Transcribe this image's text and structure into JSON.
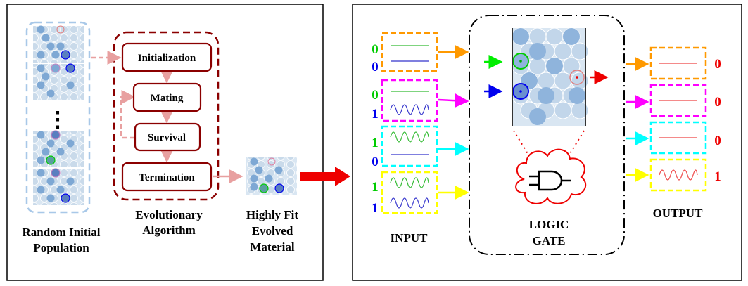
{
  "left_panel": {
    "population_label": [
      "Random Initial",
      "Population"
    ],
    "ellipsis": "⋮",
    "ea_stages": [
      "Initialization",
      "Mating",
      "Survival",
      "Termination"
    ],
    "ea_label": [
      "Evolutionary",
      "Algorithm"
    ],
    "evolved_label": [
      "Highly Fit",
      "Evolved",
      "Material"
    ]
  },
  "right_panel": {
    "input_label": "INPUT",
    "gate_label": [
      "LOGIC",
      "GATE"
    ],
    "output_label": "OUTPUT",
    "inputs": [
      {
        "a": "0",
        "b": "0",
        "box_color": "#ff9900",
        "arrow_color": "#ff9900"
      },
      {
        "a": "0",
        "b": "1",
        "box_color": "#ff00ff",
        "arrow_color": "#ff00ff"
      },
      {
        "a": "1",
        "b": "0",
        "box_color": "#00ffff",
        "arrow_color": "#00ffff"
      },
      {
        "a": "1",
        "b": "1",
        "box_color": "#ffff00",
        "arrow_color": "#ffff00"
      }
    ],
    "outputs": [
      {
        "value": "0",
        "box_color": "#ff9900"
      },
      {
        "value": "0",
        "box_color": "#ff00ff"
      },
      {
        "value": "0",
        "box_color": "#00ffff"
      },
      {
        "value": "1",
        "box_color": "#ffff00"
      }
    ]
  },
  "colors": {
    "bit_a": "#00cc00",
    "bit_b": "#0000ee",
    "bit_out": "#ee0000",
    "ea_border": "#8b0000",
    "big_arrow": "#ee0000"
  }
}
